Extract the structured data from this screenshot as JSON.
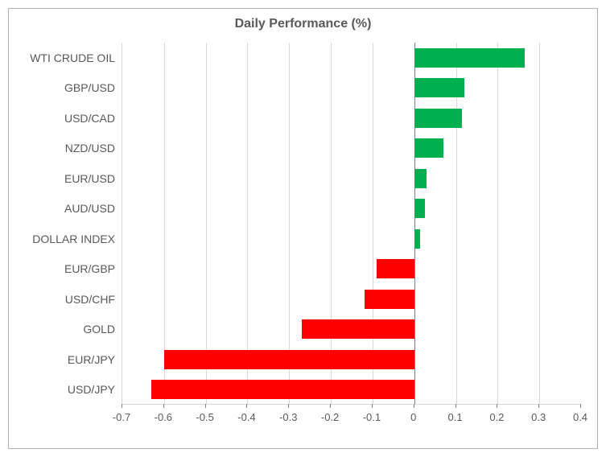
{
  "chart": {
    "type": "bar-horizontal",
    "title": "Daily Performance (%)",
    "title_fontsize": 16,
    "title_color": "#595959",
    "background_color": "#ffffff",
    "plot_border_color": "#b0b0b0",
    "grid_color": "#d9d9d9",
    "axis_line_color": "#808080",
    "label_color": "#595959",
    "label_fontsize": 14,
    "xtick_fontsize": 13,
    "xlim": [
      -0.7,
      0.4
    ],
    "xtick_step": 0.1,
    "xticks": [
      -0.7,
      -0.6,
      -0.5,
      -0.4,
      -0.3,
      -0.2,
      -0.1,
      0,
      0.1,
      0.2,
      0.3,
      0.4
    ],
    "positive_color": "#00b050",
    "negative_color": "#ff0000",
    "bar_height_ratio": 0.64,
    "categories": [
      "WTI CRUDE OIL",
      "GBP/USD",
      "USD/CAD",
      "NZD/USD",
      "EUR/USD",
      "AUD/USD",
      "DOLLAR INDEX",
      "EUR/GBP",
      "USD/CHF",
      "GOLD",
      "EUR/JPY",
      "USD/JPY"
    ],
    "values": [
      0.265,
      0.12,
      0.115,
      0.07,
      0.03,
      0.025,
      0.015,
      -0.09,
      -0.12,
      -0.27,
      -0.6,
      -0.63
    ]
  }
}
